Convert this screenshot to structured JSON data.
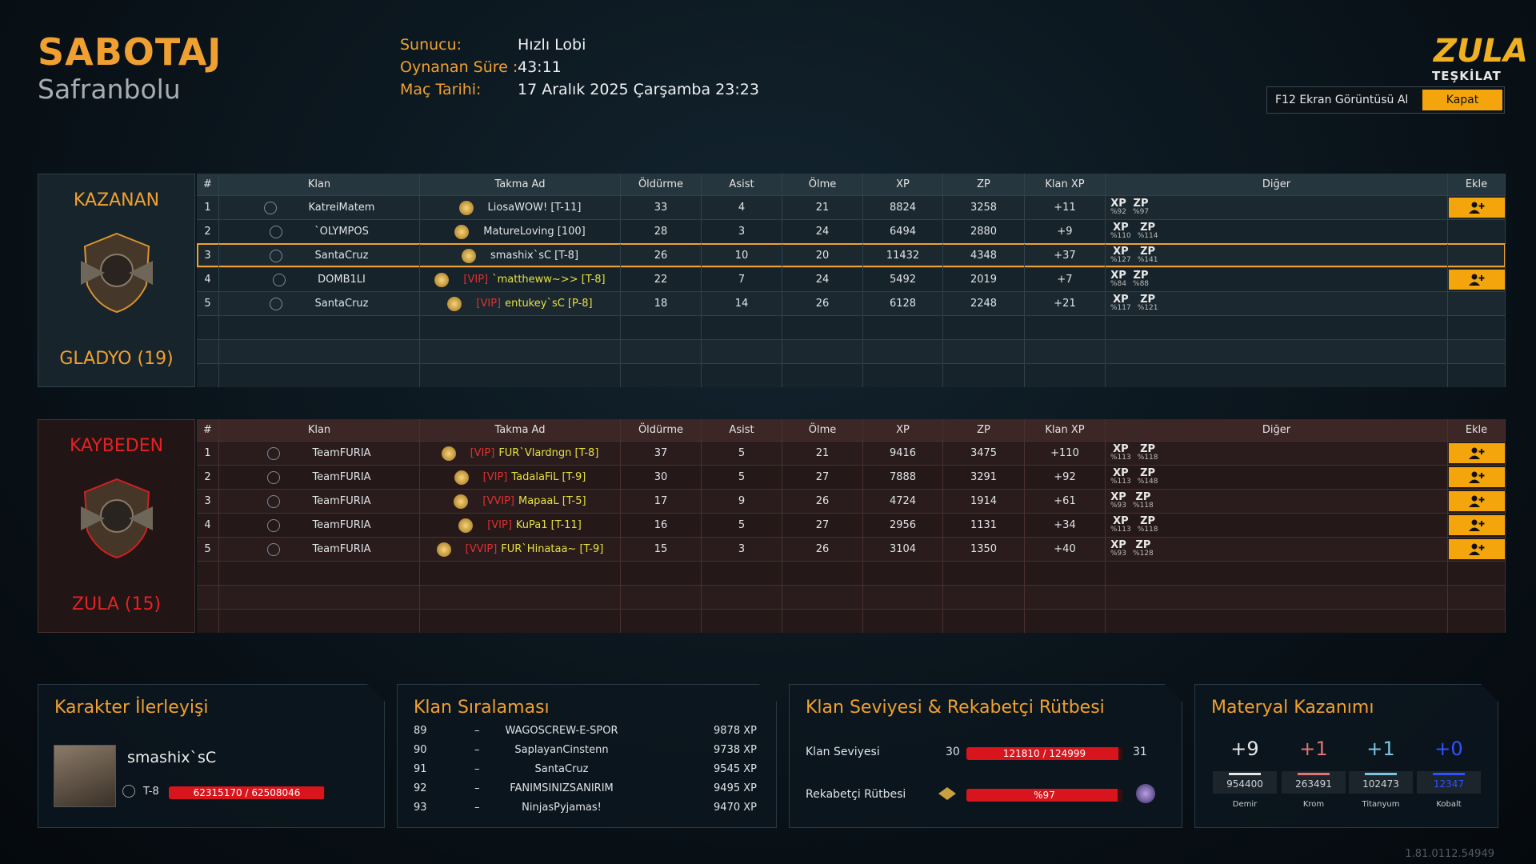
{
  "header": {
    "mode": "SABOTAJ",
    "map": "Safranbolu",
    "info": [
      {
        "label": "Sunucu:",
        "value": "Hızlı Lobi"
      },
      {
        "label": "Oynanan Süre :",
        "value": "43:11"
      },
      {
        "label": "Maç Tarihi:",
        "value": "17 Aralık 2025 Çarşamba 23:23"
      }
    ],
    "logo": "ZULA",
    "logo_sub": "TEŞKİLAT",
    "screenshot_button": "F12 Ekran Görüntüsü Al",
    "close_button": "Kapat"
  },
  "columns": [
    "#",
    "Klan",
    "Takma Ad",
    "Öldürme",
    "Asist",
    "Ölme",
    "XP",
    "ZP",
    "Klan XP",
    "Diğer",
    "Ekle"
  ],
  "bonus_labels": [
    "XP",
    "ZP"
  ],
  "teams": [
    {
      "status": "KAZANAN",
      "name": "GLADYO (19)",
      "color": "#f0a030",
      "rows": [
        {
          "rank": 1,
          "clan": "KatreiMatem",
          "nick": "LiosaWOW! [T-11]",
          "kills": 33,
          "assists": 4,
          "deaths": 21,
          "xp": 8824,
          "zp": 3258,
          "clan_xp": "+11",
          "bonus": [
            "%92",
            "%97"
          ],
          "add": true
        },
        {
          "rank": 2,
          "clan": "`OLYMPOS",
          "nick": "MatureLoving [100]",
          "kills": 28,
          "assists": 3,
          "deaths": 24,
          "xp": 6494,
          "zp": 2880,
          "clan_xp": "+9",
          "bonus": [
            "%110",
            "%114"
          ],
          "add": false
        },
        {
          "rank": 3,
          "clan": "SantaCruz",
          "nick": "smashix`sC [T-8]",
          "kills": 26,
          "assists": 10,
          "deaths": 20,
          "xp": 11432,
          "zp": 4348,
          "clan_xp": "+37",
          "bonus": [
            "%127",
            "%141"
          ],
          "add": false,
          "highlight": true
        },
        {
          "rank": 4,
          "clan": "DOMB1LI",
          "vip": "[VIP]",
          "nick": "`matthеww~>> [T-8]",
          "kills": 22,
          "assists": 7,
          "deaths": 24,
          "xp": 5492,
          "zp": 2019,
          "clan_xp": "+7",
          "bonus": [
            "%84",
            "%88"
          ],
          "add": true
        },
        {
          "rank": 5,
          "clan": "SantaCruz",
          "vip": "[VIP]",
          "nick": "entukey`sC [P-8]",
          "kills": 18,
          "assists": 14,
          "deaths": 26,
          "xp": 6128,
          "zp": 2248,
          "clan_xp": "+21",
          "bonus": [
            "%117",
            "%121"
          ],
          "add": false
        }
      ]
    },
    {
      "status": "KAYBEDEN",
      "name": "ZULA (15)",
      "color": "#e42222",
      "rows": [
        {
          "rank": 1,
          "clan": "TeamFURIA",
          "vip": "[VIP]",
          "nick": "FUR`Vlardngn [T-8]",
          "kills": 37,
          "assists": 5,
          "deaths": 21,
          "xp": 9416,
          "zp": 3475,
          "clan_xp": "+110",
          "bonus": [
            "%113",
            "%118"
          ],
          "add": true
        },
        {
          "rank": 2,
          "clan": "TeamFURIA",
          "vip": "[VIP]",
          "nick": "TadalaFiL [T-9]",
          "kills": 30,
          "assists": 5,
          "deaths": 27,
          "xp": 7888,
          "zp": 3291,
          "clan_xp": "+92",
          "bonus": [
            "%113",
            "%148"
          ],
          "add": true
        },
        {
          "rank": 3,
          "clan": "TeamFURIA",
          "vip": "[VVIP]",
          "nick": "MapaaL [T-5]",
          "kills": 17,
          "assists": 9,
          "deaths": 26,
          "xp": 4724,
          "zp": 1914,
          "clan_xp": "+61",
          "bonus": [
            "%93",
            "%118"
          ],
          "add": true
        },
        {
          "rank": 4,
          "clan": "TeamFURIA",
          "vip": "[VIP]",
          "nick": "KuPa1 [T-11]",
          "kills": 16,
          "assists": 5,
          "deaths": 27,
          "xp": 2956,
          "zp": 1131,
          "clan_xp": "+34",
          "bonus": [
            "%113",
            "%118"
          ],
          "add": true
        },
        {
          "rank": 5,
          "clan": "TeamFURIA",
          "vip": "[VVIP]",
          "nick": "FUR`Hinataa~ [T-9]",
          "kills": 15,
          "assists": 3,
          "deaths": 26,
          "xp": 3104,
          "zp": 1350,
          "clan_xp": "+40",
          "bonus": [
            "%93",
            "%128"
          ],
          "add": true
        }
      ]
    }
  ],
  "character": {
    "title": "Karakter İlerleyişi",
    "name": "smashix`sC",
    "rank": "T-8",
    "progress": {
      "label": "62315170 / 62508046",
      "current": 62315170,
      "max": 62508046
    }
  },
  "clan_ranking": {
    "title": "Klan Sıralaması",
    "rows": [
      {
        "rank": 89,
        "sep": "–",
        "name": "WAGOSCREW-E-SPOR",
        "xp": "9878 XP"
      },
      {
        "rank": 90,
        "sep": "–",
        "name": "SaplayanCinstenn",
        "xp": "9738 XP"
      },
      {
        "rank": 91,
        "sep": "–",
        "name": "SantaCruz",
        "xp": "9545 XP"
      },
      {
        "rank": 92,
        "sep": "–",
        "name": "FANIMSINIZSANIRIM",
        "xp": "9495 XP"
      },
      {
        "rank": 93,
        "sep": "–",
        "name": "NinjasPyjamas!",
        "xp": "9470 XP"
      }
    ]
  },
  "clan_level": {
    "title": "Klan Seviyesi & Rekabetçi Rütbesi",
    "level": {
      "label": "Klan Seviyesi",
      "from": 30,
      "to": 31,
      "bar": {
        "label": "121810 / 124999",
        "current": 121810,
        "max": 124999
      }
    },
    "rank": {
      "label": "Rekabetçi Rütbesi",
      "bar": {
        "label": "%97",
        "value": 97
      }
    }
  },
  "materials": {
    "title": "Materyal Kazanımı",
    "items": [
      {
        "gain": "+9",
        "total": 954400,
        "name": "Demir",
        "color": "#e6e6e6"
      },
      {
        "gain": "+1",
        "total": 263491,
        "name": "Krom",
        "color": "#e07474"
      },
      {
        "gain": "+1",
        "total": 102473,
        "name": "Titanyum",
        "color": "#7cc4e4"
      },
      {
        "gain": "+0",
        "total": 12347,
        "name": "Kobalt",
        "color": "#2f52ff"
      }
    ]
  },
  "version": "1.81.0112.54949"
}
